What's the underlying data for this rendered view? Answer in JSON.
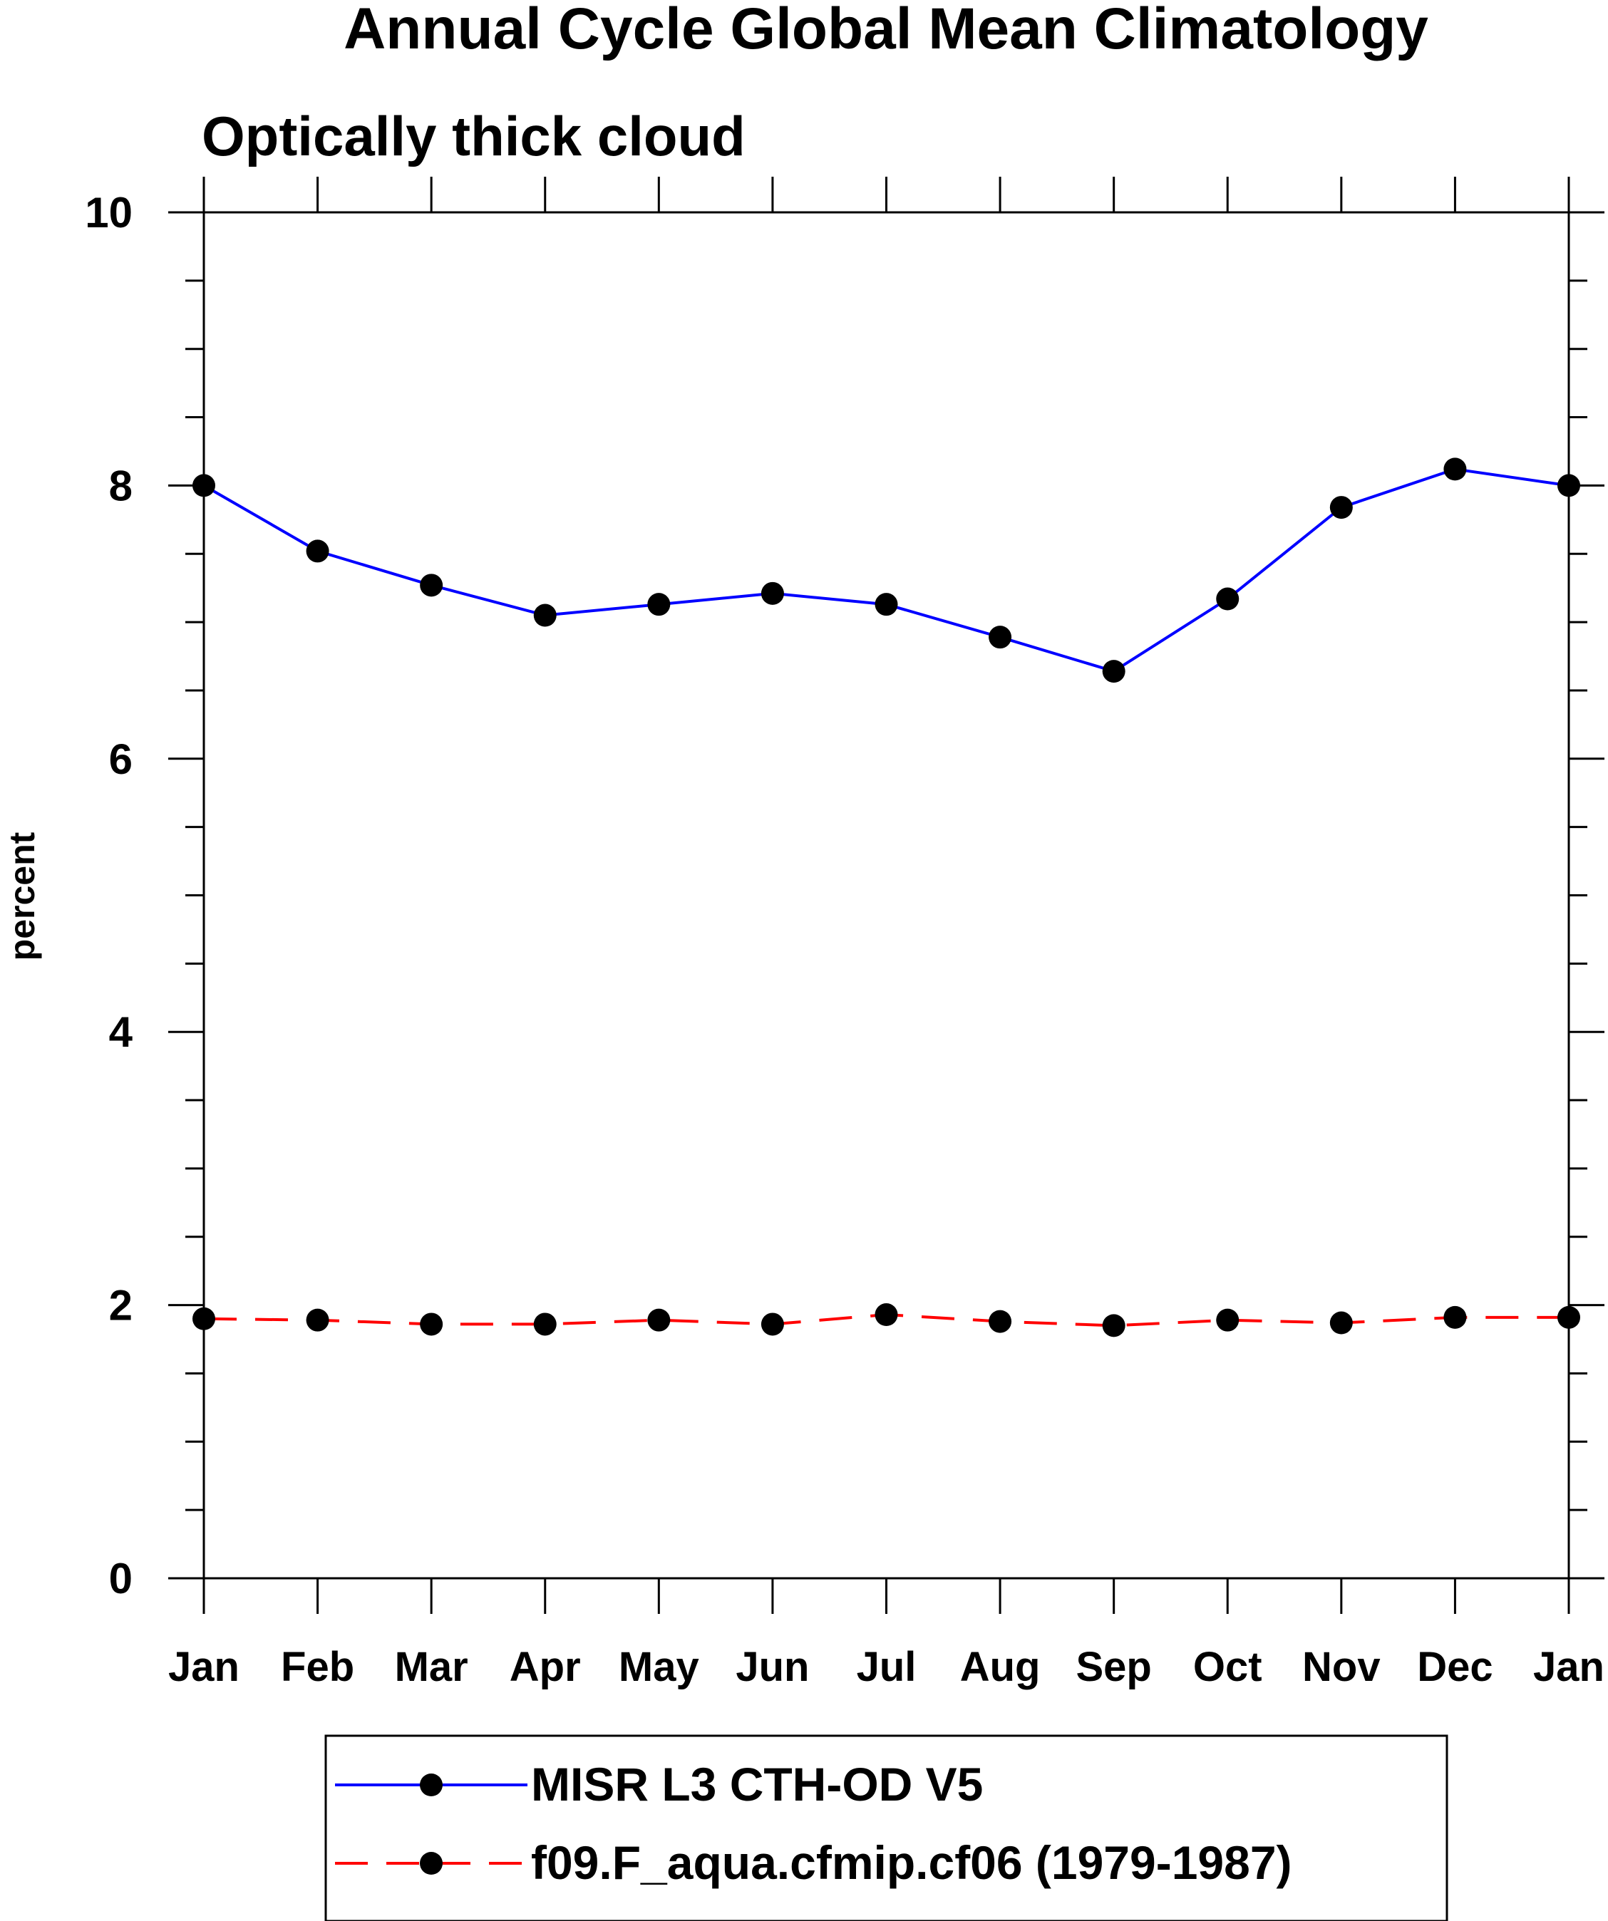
{
  "chart_data": {
    "type": "line",
    "title": "Annual Cycle Global Mean Climatology",
    "subtitle": "Optically thick cloud",
    "xlabel": "",
    "ylabel": "percent",
    "categories": [
      "Jan",
      "Feb",
      "Mar",
      "Apr",
      "May",
      "Jun",
      "Jul",
      "Aug",
      "Sep",
      "Oct",
      "Nov",
      "Dec",
      "Jan"
    ],
    "ylim": [
      0,
      10
    ],
    "yticks": [
      "0",
      "2",
      "4",
      "6",
      "8",
      "10"
    ],
    "grid": false,
    "legend_position": "bottom",
    "series": [
      {
        "name": "MISR L3 CTH-OD V5",
        "color": "#0000ff",
        "line_style": "solid",
        "marker": "filled-circle",
        "values": [
          8.0,
          7.52,
          7.27,
          7.05,
          7.13,
          7.21,
          7.13,
          6.89,
          6.64,
          7.17,
          7.84,
          8.12,
          8.0
        ]
      },
      {
        "name": "f09.F_aqua.cfmip.cf06 (1979-1987)",
        "color": "#ff0000",
        "line_style": "dashed",
        "marker": "filled-circle",
        "values": [
          1.9,
          1.89,
          1.86,
          1.86,
          1.89,
          1.86,
          1.93,
          1.88,
          1.85,
          1.89,
          1.87,
          1.91,
          1.91
        ]
      }
    ]
  }
}
